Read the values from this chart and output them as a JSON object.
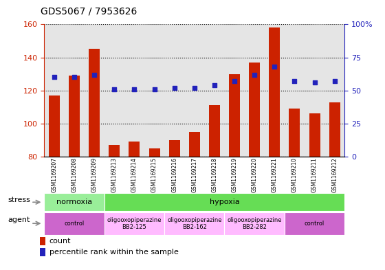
{
  "title": "GDS5067 / 7953626",
  "samples": [
    "GSM1169207",
    "GSM1169208",
    "GSM1169209",
    "GSM1169213",
    "GSM1169214",
    "GSM1169215",
    "GSM1169216",
    "GSM1169217",
    "GSM1169218",
    "GSM1169219",
    "GSM1169220",
    "GSM1169221",
    "GSM1169210",
    "GSM1169211",
    "GSM1169212"
  ],
  "counts": [
    117,
    129,
    145,
    87,
    89,
    85,
    90,
    95,
    111,
    130,
    137,
    158,
    109,
    106,
    113
  ],
  "percentiles": [
    60,
    60,
    62,
    51,
    51,
    51,
    52,
    52,
    54,
    57,
    62,
    68,
    57,
    56,
    57
  ],
  "ylim_left": [
    80,
    160
  ],
  "ylim_right": [
    0,
    100
  ],
  "bar_color": "#CC2200",
  "dot_color": "#2222BB",
  "bar_width": 0.55,
  "stress_groups": [
    {
      "label": "normoxia",
      "start": 0,
      "end": 3,
      "color": "#99EE99"
    },
    {
      "label": "hypoxia",
      "start": 3,
      "end": 15,
      "color": "#66DD55"
    }
  ],
  "agent_groups": [
    {
      "label": "control",
      "start": 0,
      "end": 3,
      "color": "#CC66CC"
    },
    {
      "label": "oligooxopiperazine\nBB2-125",
      "start": 3,
      "end": 6,
      "color": "#FFBBFF"
    },
    {
      "label": "oligooxopiperazine\nBB2-162",
      "start": 6,
      "end": 9,
      "color": "#FFBBFF"
    },
    {
      "label": "oligooxopiperazine\nBB2-282",
      "start": 9,
      "end": 12,
      "color": "#FFBBFF"
    },
    {
      "label": "control",
      "start": 12,
      "end": 15,
      "color": "#CC66CC"
    }
  ],
  "legend_count_label": "count",
  "legend_percentile_label": "percentile rank within the sample",
  "yticks_left": [
    80,
    100,
    120,
    140,
    160
  ],
  "yticks_right": [
    0,
    25,
    50,
    75,
    100
  ],
  "left_color": "#CC2200",
  "right_color": "#2222BB",
  "col_bg_color": "#CCCCCC",
  "col_bg_alpha": 0.5
}
